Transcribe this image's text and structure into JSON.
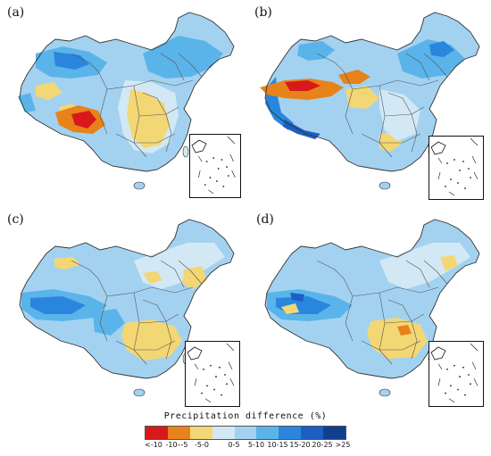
{
  "panels": [
    {
      "label": "(a)"
    },
    {
      "label": "(b)"
    },
    {
      "label": "(c)"
    },
    {
      "label": "(d)"
    }
  ],
  "legend": {
    "title": "Precipitation difference (%)",
    "classes": [
      {
        "label": "<-10",
        "color": "#d7191c"
      },
      {
        "label": "-10–-5",
        "color": "#e8821a"
      },
      {
        "label": "-5-0",
        "color": "#f3d774"
      },
      {
        "label": "0-5",
        "color": "#d3e8f5"
      },
      {
        "label": "5-10",
        "color": "#a3d2f1"
      },
      {
        "label": "10-15",
        "color": "#5ab4ea"
      },
      {
        "label": "15-20",
        "color": "#2a86dd"
      },
      {
        "label": "20-25",
        "color": "#1b5fc2"
      },
      {
        "label": ">25",
        "color": "#113f8f"
      }
    ]
  },
  "legend_tick_labels": [
    "<-10",
    "-10–-5",
    "-5-0",
    "0-5",
    "5-10",
    "10-15",
    "15-20",
    "20-25",
    ">25"
  ]
}
